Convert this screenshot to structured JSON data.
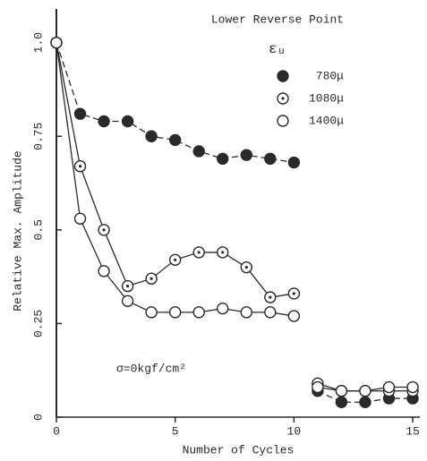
{
  "chart_data": {
    "type": "line",
    "title": "Lower Reverse Point",
    "xlabel": "Number of Cycles",
    "ylabel": "Relative Max. Amplitude",
    "legend_title": "εᵤ",
    "legend": "upper right",
    "annotation": "σ=0kgf/cm²",
    "xlim": [
      0,
      15.3
    ],
    "xticks": [
      0,
      5,
      10,
      15
    ],
    "ylim": [
      0,
      1.09
    ],
    "yticks": [
      0,
      0.25,
      0.5,
      0.75,
      {
        "value": 1,
        "label": "1.0"
      }
    ],
    "color": "#2a2a2a",
    "series": [
      {
        "name": "780μ",
        "marker": "filled",
        "line": "dashed",
        "x": [
          0,
          1,
          2,
          3,
          4,
          5,
          6,
          7,
          8,
          9,
          10
        ],
        "values": [
          1.0,
          0.81,
          0.79,
          0.79,
          0.75,
          0.74,
          0.71,
          0.69,
          0.7,
          0.69,
          0.68
        ]
      },
      {
        "name": "1080μ",
        "marker": "dotted",
        "line": "solid",
        "x": [
          0,
          1,
          2,
          3,
          4,
          5,
          6,
          7,
          8,
          9,
          10
        ],
        "values": [
          1.0,
          0.67,
          0.5,
          0.35,
          0.37,
          0.42,
          0.44,
          0.44,
          0.4,
          0.32,
          0.33
        ]
      },
      {
        "name": "1400μ",
        "marker": "open",
        "line": "solid",
        "x": [
          0,
          1,
          2,
          3,
          4,
          5,
          6,
          7,
          8,
          9,
          10
        ],
        "values": [
          1.0,
          0.53,
          0.39,
          0.31,
          0.28,
          0.28,
          0.28,
          0.29,
          0.28,
          0.28,
          0.27
        ]
      },
      {
        "marker": "filled",
        "line": "dashed",
        "x": [
          11,
          12,
          13,
          14,
          15
        ],
        "values": [
          0.07,
          0.04,
          0.04,
          0.05,
          0.05
        ]
      },
      {
        "marker": "dotted",
        "line": "solid",
        "x": [
          11,
          12,
          13,
          14,
          15
        ],
        "values": [
          0.09,
          0.07,
          0.07,
          0.07,
          0.07
        ]
      },
      {
        "marker": "open",
        "line": "solid",
        "x": [
          11,
          12,
          13,
          14,
          15
        ],
        "values": [
          0.08,
          0.07,
          0.07,
          0.08,
          0.08
        ]
      }
    ]
  }
}
